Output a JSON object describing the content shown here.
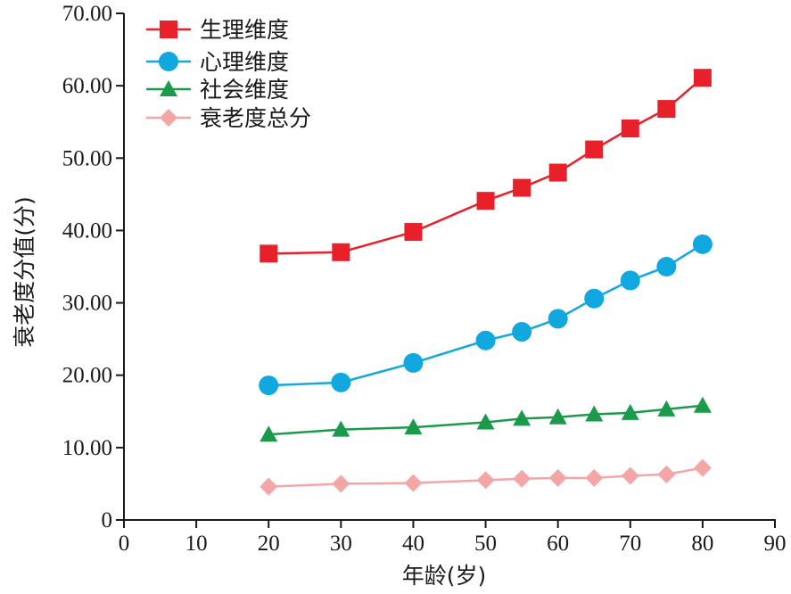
{
  "chart_data": {
    "type": "line",
    "xlabel": "年龄(岁)",
    "ylabel": "衰老度分值(分)",
    "xlim": [
      0,
      90
    ],
    "ylim": [
      0,
      70
    ],
    "x_ticks": [
      "0",
      "10",
      "20",
      "30",
      "40",
      "50",
      "60",
      "70",
      "80",
      "90"
    ],
    "y_ticks": [
      "0",
      "10.00",
      "20.00",
      "30.00",
      "40.00",
      "50.00",
      "60.00",
      "70.00"
    ],
    "grid": false,
    "legend_position": "top-left",
    "x": [
      20,
      30,
      40,
      50,
      55,
      60,
      65,
      70,
      75,
      80
    ],
    "series": [
      {
        "name": "生理维度",
        "color": "#e8202a",
        "marker": "square",
        "values": [
          36.8,
          37.0,
          39.8,
          44.1,
          45.9,
          48.0,
          51.2,
          54.1,
          56.8,
          61.1
        ]
      },
      {
        "name": "心理维度",
        "color": "#11a8e0",
        "marker": "circle",
        "values": [
          18.6,
          19.0,
          21.7,
          24.8,
          26.0,
          27.8,
          30.6,
          33.1,
          35.0,
          38.1
        ]
      },
      {
        "name": "社会维度",
        "color": "#1a9a4a",
        "marker": "triangle",
        "values": [
          11.8,
          12.5,
          12.8,
          13.5,
          14.0,
          14.2,
          14.6,
          14.8,
          15.3,
          15.8
        ]
      },
      {
        "name": "衰老度总分",
        "color": "#f4a6a6",
        "marker": "diamond",
        "values": [
          4.6,
          5.0,
          5.1,
          5.5,
          5.7,
          5.8,
          5.8,
          6.1,
          6.3,
          7.2
        ]
      }
    ]
  }
}
